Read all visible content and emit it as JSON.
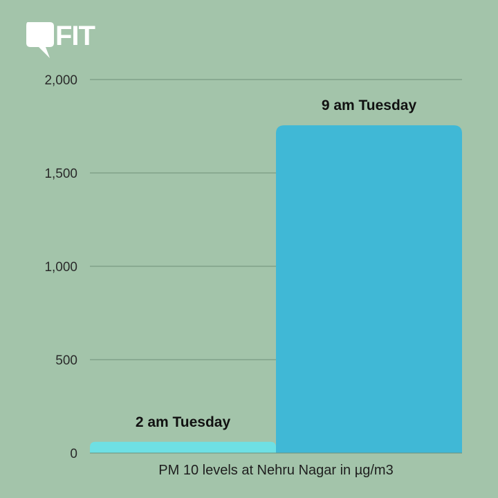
{
  "logo": {
    "text": "FIT",
    "color": "#ffffff"
  },
  "chart_data": {
    "type": "bar",
    "categories": [
      "2 am Tuesday",
      "9 am Tuesday"
    ],
    "values": [
      60,
      1755
    ],
    "data_labels": [
      "2 am Tuesday",
      "9 am Tuesday"
    ],
    "xlabel": "PM 10 levels at Nehru Nagar in µg/m3",
    "ylabel": "",
    "ylim": [
      0,
      2000
    ],
    "yticks": [
      0,
      500,
      1000,
      1500,
      2000
    ],
    "ytick_labels": [
      "0",
      "500",
      "1,000",
      "1,500",
      "2,000"
    ],
    "grid": true,
    "colors": {
      "background": "#a3c4aa",
      "bars": [
        "#6ee0e4",
        "#40b8d6"
      ],
      "grid": "#6f8f78"
    }
  }
}
